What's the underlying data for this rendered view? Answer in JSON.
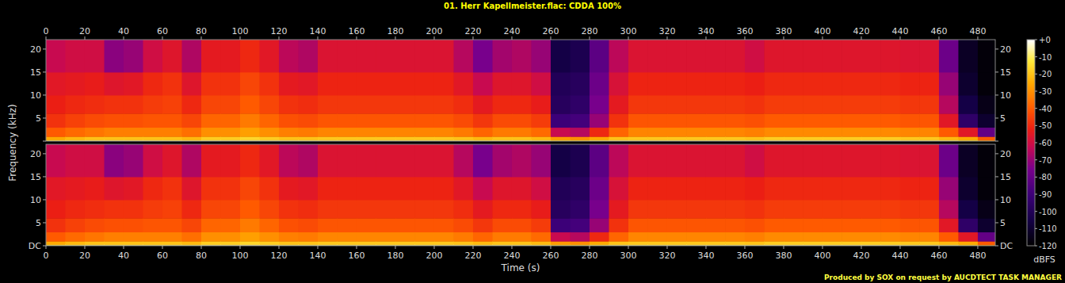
{
  "chart_data": {
    "type": "heatmap",
    "title": "01. Herr Kapellmeister.flac: CDDA 100%",
    "x_label": "Time (s)",
    "y_label": "Frequency (kHz)",
    "footer": "Produced by SOX on request by AUCDTECT TASK MANAGER",
    "xlim": [
      0,
      489
    ],
    "xticks": [
      0,
      20,
      40,
      60,
      80,
      100,
      120,
      140,
      160,
      180,
      200,
      220,
      240,
      260,
      280,
      300,
      320,
      340,
      360,
      380,
      400,
      420,
      440,
      460,
      480
    ],
    "ylim": [
      0,
      22.05
    ],
    "yticks": [
      {
        "value": 0,
        "label": "DC"
      },
      5,
      10,
      15,
      20
    ],
    "time_bins": [
      0,
      10,
      20,
      30,
      40,
      50,
      60,
      70,
      80,
      90,
      100,
      110,
      120,
      130,
      140,
      150,
      160,
      170,
      180,
      190,
      200,
      210,
      220,
      230,
      240,
      250,
      260,
      270,
      280,
      290,
      300,
      310,
      320,
      330,
      340,
      350,
      360,
      370,
      380,
      390,
      400,
      410,
      420,
      430,
      440,
      450,
      460,
      470,
      480,
      489
    ],
    "frequency_bins": [
      0,
      0.3,
      1,
      3,
      6,
      10,
      15,
      22.05
    ],
    "channels": [
      [
        [
          -10,
          -25,
          -40,
          -48,
          -52,
          -55,
          -62
        ],
        [
          -9,
          -22,
          -37,
          -45,
          -50,
          -54,
          -60
        ],
        [
          -8,
          -20,
          -35,
          -43,
          -49,
          -53,
          -60
        ],
        [
          -8,
          -20,
          -33,
          -42,
          -48,
          -56,
          -72
        ],
        [
          -8,
          -20,
          -33,
          -42,
          -48,
          -55,
          -70
        ],
        [
          -8,
          -20,
          -33,
          -41,
          -46,
          -50,
          -60
        ],
        [
          -8,
          -20,
          -33,
          -41,
          -45,
          -48,
          -56
        ],
        [
          -9,
          -22,
          -36,
          -44,
          -50,
          -56,
          -66
        ],
        [
          -7,
          -18,
          -30,
          -38,
          -44,
          -48,
          -54
        ],
        [
          -7,
          -18,
          -30,
          -38,
          -44,
          -48,
          -54
        ],
        [
          -6,
          -16,
          -27,
          -34,
          -40,
          -44,
          -50
        ],
        [
          -7,
          -18,
          -30,
          -38,
          -44,
          -48,
          -55
        ],
        [
          -8,
          -20,
          -33,
          -42,
          -48,
          -54,
          -64
        ],
        [
          -8,
          -20,
          -34,
          -43,
          -49,
          -55,
          -66
        ],
        [
          -8,
          -19,
          -32,
          -41,
          -47,
          -51,
          -57
        ],
        [
          -8,
          -19,
          -32,
          -41,
          -47,
          -51,
          -57
        ],
        [
          -8,
          -19,
          -32,
          -41,
          -47,
          -51,
          -57
        ],
        [
          -8,
          -19,
          -32,
          -41,
          -47,
          -51,
          -57
        ],
        [
          -8,
          -19,
          -32,
          -41,
          -47,
          -51,
          -57
        ],
        [
          -8,
          -19,
          -32,
          -41,
          -47,
          -51,
          -57
        ],
        [
          -8,
          -19,
          -32,
          -41,
          -47,
          -51,
          -57
        ],
        [
          -8,
          -20,
          -34,
          -43,
          -49,
          -55,
          -65
        ],
        [
          -9,
          -22,
          -38,
          -47,
          -54,
          -62,
          -75
        ],
        [
          -8,
          -20,
          -34,
          -43,
          -50,
          -56,
          -68
        ],
        [
          -8,
          -20,
          -34,
          -43,
          -50,
          -56,
          -66
        ],
        [
          -9,
          -22,
          -37,
          -46,
          -53,
          -60,
          -70
        ],
        [
          -15,
          -28,
          -62,
          -90,
          -98,
          -100,
          -105
        ],
        [
          -15,
          -30,
          -65,
          -88,
          -95,
          -98,
          -102
        ],
        [
          -10,
          -25,
          -50,
          -70,
          -75,
          -78,
          -82
        ],
        [
          -8,
          -20,
          -38,
          -48,
          -54,
          -58,
          -64
        ],
        [
          -8,
          -19,
          -32,
          -41,
          -47,
          -51,
          -57
        ],
        [
          -8,
          -19,
          -32,
          -41,
          -47,
          -51,
          -57
        ],
        [
          -8,
          -19,
          -32,
          -41,
          -47,
          -51,
          -57
        ],
        [
          -8,
          -19,
          -32,
          -41,
          -47,
          -51,
          -57
        ],
        [
          -8,
          -19,
          -32,
          -41,
          -47,
          -51,
          -57
        ],
        [
          -8,
          -19,
          -32,
          -41,
          -47,
          -51,
          -57
        ],
        [
          -8,
          -20,
          -33,
          -42,
          -48,
          -52,
          -60
        ],
        [
          -7,
          -18,
          -31,
          -40,
          -46,
          -50,
          -56
        ],
        [
          -7,
          -18,
          -31,
          -40,
          -46,
          -50,
          -56
        ],
        [
          -7,
          -18,
          -31,
          -40,
          -46,
          -50,
          -56
        ],
        [
          -7,
          -18,
          -31,
          -40,
          -46,
          -50,
          -56
        ],
        [
          -7,
          -18,
          -31,
          -40,
          -46,
          -50,
          -56
        ],
        [
          -7,
          -18,
          -31,
          -40,
          -46,
          -50,
          -56
        ],
        [
          -7,
          -18,
          -31,
          -40,
          -46,
          -50,
          -56
        ],
        [
          -8,
          -19,
          -32,
          -41,
          -47,
          -51,
          -57
        ],
        [
          -8,
          -19,
          -32,
          -41,
          -47,
          -51,
          -57
        ],
        [
          -9,
          -22,
          -40,
          -55,
          -65,
          -70,
          -78
        ],
        [
          -15,
          -25,
          -55,
          -95,
          -105,
          -110,
          -112
        ],
        [
          -30,
          -40,
          -80,
          -110,
          -115,
          -118,
          -118
        ]
      ],
      [
        [
          -10,
          -25,
          -40,
          -48,
          -52,
          -55,
          -62
        ],
        [
          -9,
          -22,
          -37,
          -45,
          -50,
          -54,
          -60
        ],
        [
          -8,
          -20,
          -35,
          -43,
          -49,
          -53,
          -60
        ],
        [
          -8,
          -20,
          -33,
          -42,
          -48,
          -56,
          -72
        ],
        [
          -8,
          -20,
          -33,
          -42,
          -48,
          -55,
          -70
        ],
        [
          -8,
          -20,
          -33,
          -41,
          -46,
          -50,
          -60
        ],
        [
          -8,
          -20,
          -33,
          -41,
          -45,
          -48,
          -56
        ],
        [
          -9,
          -22,
          -36,
          -44,
          -50,
          -56,
          -66
        ],
        [
          -7,
          -18,
          -30,
          -38,
          -44,
          -48,
          -54
        ],
        [
          -7,
          -18,
          -30,
          -38,
          -44,
          -48,
          -54
        ],
        [
          -6,
          -16,
          -27,
          -34,
          -40,
          -44,
          -50
        ],
        [
          -7,
          -18,
          -30,
          -38,
          -44,
          -48,
          -55
        ],
        [
          -8,
          -20,
          -33,
          -42,
          -48,
          -54,
          -64
        ],
        [
          -8,
          -20,
          -34,
          -43,
          -49,
          -55,
          -66
        ],
        [
          -8,
          -19,
          -32,
          -41,
          -47,
          -51,
          -57
        ],
        [
          -8,
          -19,
          -32,
          -41,
          -47,
          -51,
          -57
        ],
        [
          -8,
          -19,
          -32,
          -41,
          -47,
          -51,
          -57
        ],
        [
          -8,
          -19,
          -32,
          -41,
          -47,
          -51,
          -57
        ],
        [
          -8,
          -19,
          -32,
          -41,
          -47,
          -51,
          -57
        ],
        [
          -8,
          -19,
          -32,
          -41,
          -47,
          -51,
          -57
        ],
        [
          -8,
          -19,
          -32,
          -41,
          -47,
          -51,
          -57
        ],
        [
          -8,
          -20,
          -34,
          -43,
          -49,
          -55,
          -65
        ],
        [
          -9,
          -22,
          -38,
          -47,
          -54,
          -62,
          -75
        ],
        [
          -8,
          -20,
          -34,
          -43,
          -50,
          -56,
          -68
        ],
        [
          -8,
          -20,
          -34,
          -43,
          -50,
          -56,
          -66
        ],
        [
          -9,
          -22,
          -37,
          -46,
          -53,
          -60,
          -70
        ],
        [
          -15,
          -28,
          -62,
          -90,
          -98,
          -100,
          -105
        ],
        [
          -15,
          -30,
          -65,
          -88,
          -95,
          -98,
          -102
        ],
        [
          -10,
          -25,
          -50,
          -70,
          -75,
          -78,
          -82
        ],
        [
          -8,
          -20,
          -38,
          -48,
          -54,
          -58,
          -64
        ],
        [
          -8,
          -19,
          -32,
          -41,
          -47,
          -51,
          -57
        ],
        [
          -8,
          -19,
          -32,
          -41,
          -47,
          -51,
          -57
        ],
        [
          -8,
          -19,
          -32,
          -41,
          -47,
          -51,
          -57
        ],
        [
          -8,
          -19,
          -32,
          -41,
          -47,
          -51,
          -57
        ],
        [
          -8,
          -19,
          -32,
          -41,
          -47,
          -51,
          -57
        ],
        [
          -8,
          -19,
          -32,
          -41,
          -47,
          -51,
          -57
        ],
        [
          -8,
          -20,
          -33,
          -42,
          -48,
          -52,
          -60
        ],
        [
          -7,
          -18,
          -31,
          -40,
          -46,
          -50,
          -56
        ],
        [
          -7,
          -18,
          -31,
          -40,
          -46,
          -50,
          -56
        ],
        [
          -7,
          -18,
          -31,
          -40,
          -46,
          -50,
          -56
        ],
        [
          -7,
          -18,
          -31,
          -40,
          -46,
          -50,
          -56
        ],
        [
          -7,
          -18,
          -31,
          -40,
          -46,
          -50,
          -56
        ],
        [
          -7,
          -18,
          -31,
          -40,
          -46,
          -50,
          -56
        ],
        [
          -7,
          -18,
          -31,
          -40,
          -46,
          -50,
          -56
        ],
        [
          -8,
          -19,
          -32,
          -41,
          -47,
          -51,
          -57
        ],
        [
          -8,
          -19,
          -32,
          -41,
          -47,
          -51,
          -57
        ],
        [
          -9,
          -22,
          -40,
          -55,
          -65,
          -70,
          -78
        ],
        [
          -15,
          -25,
          -55,
          -95,
          -105,
          -110,
          -112
        ],
        [
          -30,
          -40,
          -80,
          -110,
          -115,
          -118,
          -118
        ]
      ]
    ],
    "colorbar": {
      "range": [
        -120,
        0
      ],
      "ticks": [
        {
          "value": 0,
          "label": "+0"
        },
        -10,
        -20,
        -30,
        -40,
        -50,
        -60,
        -70,
        -80,
        -90,
        -100,
        -110,
        -120
      ],
      "label": "dBFS"
    }
  }
}
